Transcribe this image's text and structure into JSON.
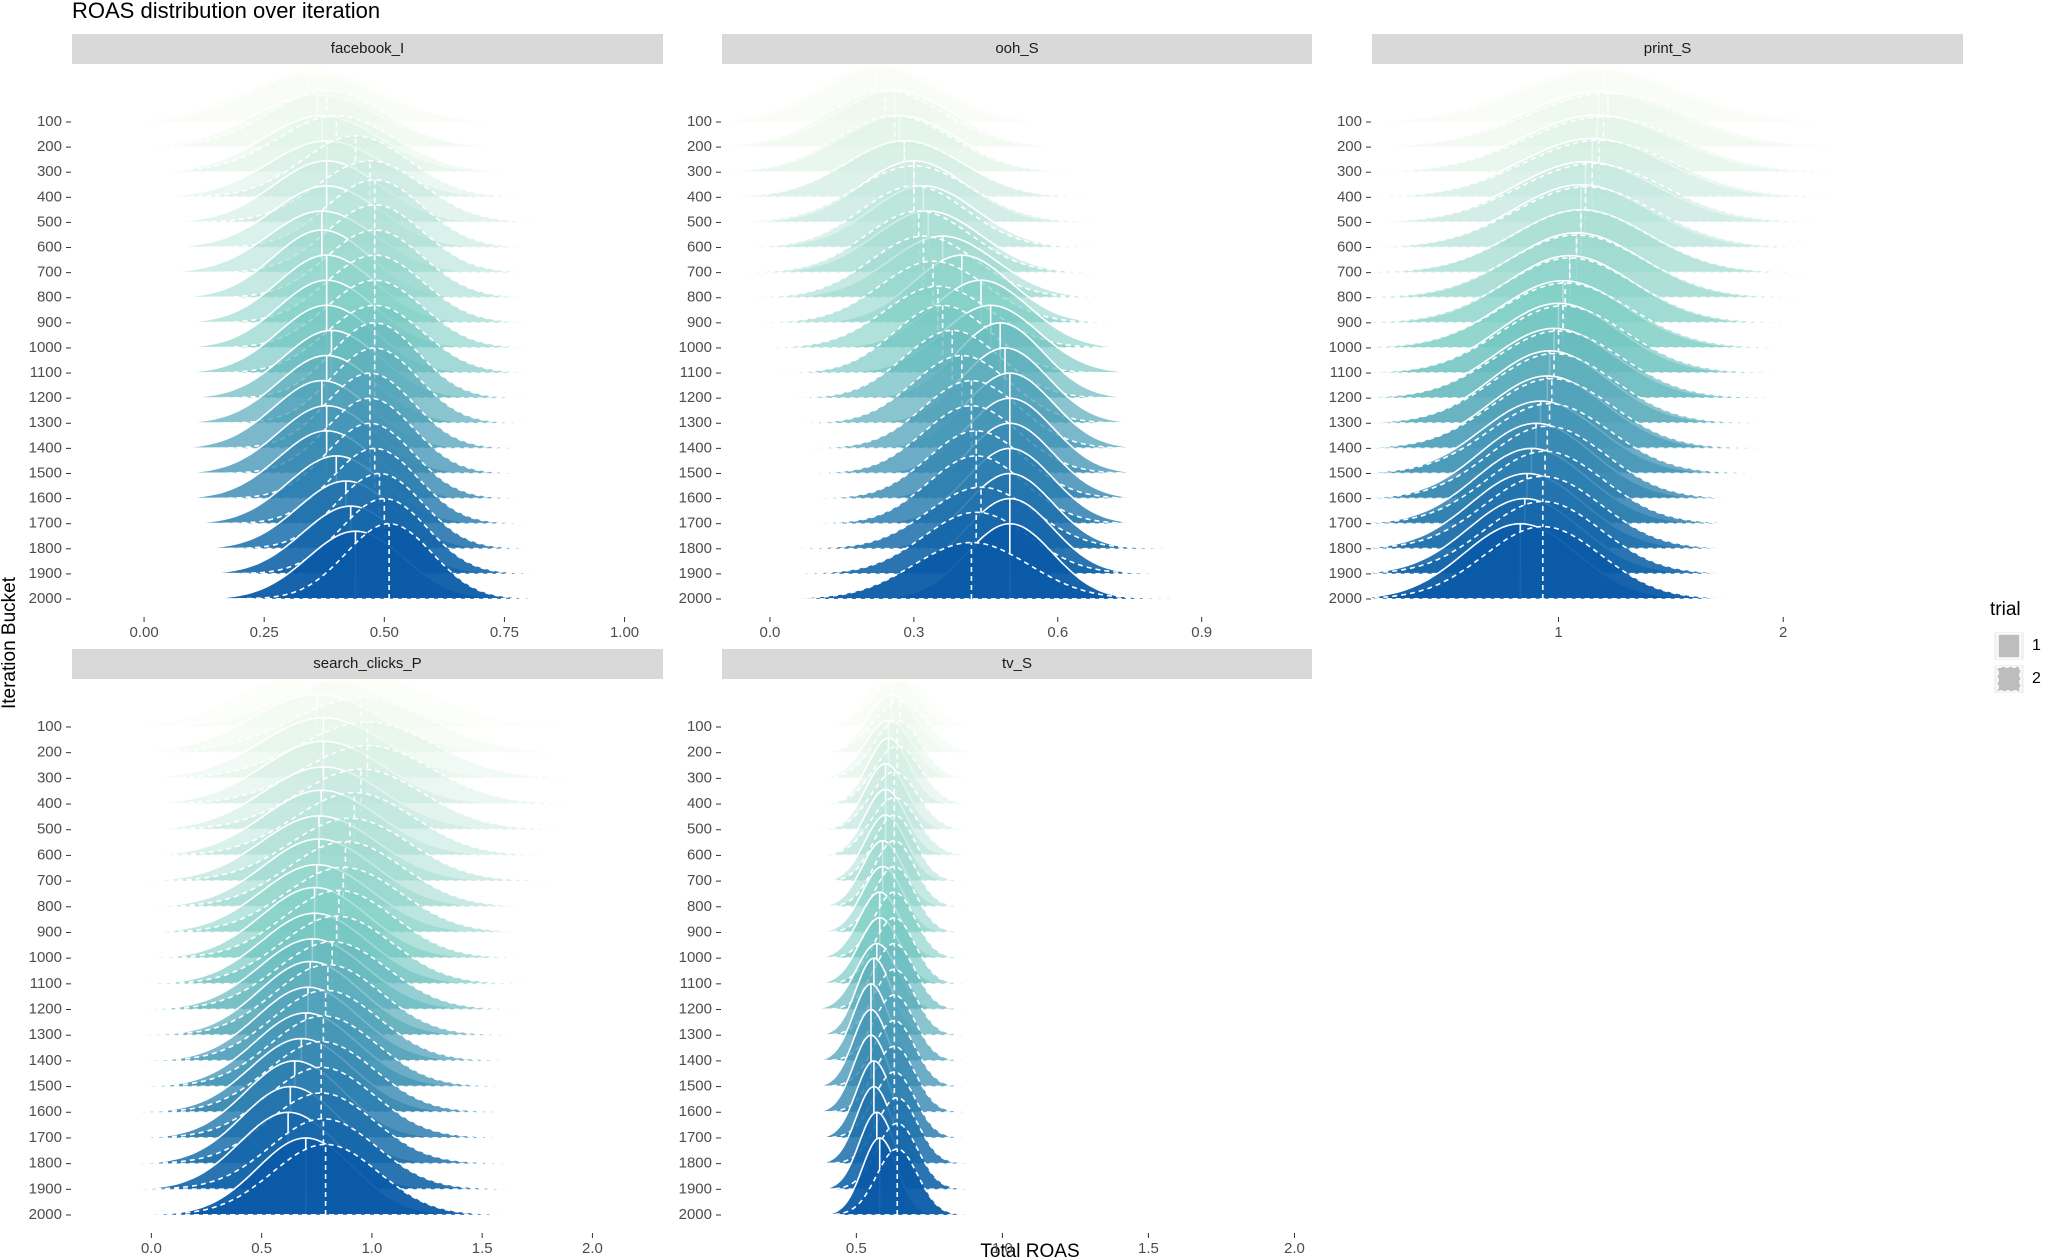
{
  "title": "ROAS distribution over iteration",
  "x_label": "Total ROAS",
  "y_label": "Iteration Bucket",
  "legend_title": "trial",
  "palette": [
    "#f7fcf0",
    "#7bccc4",
    "#0b5ba8"
  ],
  "chart_data": [
    {
      "type": "ridgeline",
      "title": "facebook_I",
      "categories": [
        "100",
        "200",
        "300",
        "400",
        "500",
        "600",
        "700",
        "800",
        "900",
        "1000",
        "1100",
        "1200",
        "1300",
        "1400",
        "1500",
        "1600",
        "1700",
        "1800",
        "1900",
        "2000"
      ],
      "series": [
        {
          "name": "1",
          "line": "solid",
          "values": [
            0.34,
            0.36,
            0.37,
            0.38,
            0.38,
            0.38,
            0.37,
            0.37,
            0.38,
            0.38,
            0.38,
            0.39,
            0.38,
            0.37,
            0.38,
            0.38,
            0.4,
            0.42,
            0.43,
            0.44
          ],
          "spread": [
            0.14,
            0.13,
            0.12,
            0.12,
            0.11,
            0.11,
            0.11,
            0.1,
            0.1,
            0.1,
            0.1,
            0.1,
            0.1,
            0.1,
            0.1,
            0.1,
            0.1,
            0.1,
            0.1,
            0.1
          ]
        },
        {
          "name": "2",
          "line": "dashed",
          "values": [
            0.36,
            0.38,
            0.4,
            0.44,
            0.47,
            0.48,
            0.48,
            0.48,
            0.48,
            0.48,
            0.48,
            0.48,
            0.48,
            0.47,
            0.47,
            0.47,
            0.48,
            0.49,
            0.5,
            0.51
          ],
          "spread": [
            0.13,
            0.12,
            0.12,
            0.11,
            0.11,
            0.1,
            0.1,
            0.1,
            0.1,
            0.1,
            0.1,
            0.09,
            0.09,
            0.09,
            0.09,
            0.09,
            0.09,
            0.09,
            0.09,
            0.09
          ]
        }
      ],
      "xlim": [
        -0.15,
        1.08
      ],
      "xticks": [
        {
          "value": 0,
          "label": "0.00"
        },
        0.25,
        {
          "value": 0.5,
          "label": "0.50"
        },
        0.75,
        {
          "value": 1,
          "label": "1.00"
        }
      ]
    },
    {
      "type": "ridgeline",
      "title": "ooh_S",
      "categories": [
        "100",
        "200",
        "300",
        "400",
        "500",
        "600",
        "700",
        "800",
        "900",
        "1000",
        "1100",
        "1200",
        "1300",
        "1400",
        "1500",
        "1600",
        "1700",
        "1800",
        "1900",
        "2000"
      ],
      "series": [
        {
          "name": "1",
          "line": "solid",
          "values": [
            0.24,
            0.26,
            0.27,
            0.28,
            0.3,
            0.32,
            0.33,
            0.36,
            0.4,
            0.44,
            0.46,
            0.48,
            0.49,
            0.5,
            0.5,
            0.5,
            0.5,
            0.5,
            0.5,
            0.5
          ],
          "spread": [
            0.12,
            0.12,
            0.12,
            0.12,
            0.11,
            0.11,
            0.11,
            0.11,
            0.1,
            0.1,
            0.1,
            0.09,
            0.09,
            0.09,
            0.09,
            0.09,
            0.09,
            0.09,
            0.09,
            0.09
          ]
        },
        {
          "name": "2",
          "line": "dashed",
          "values": [
            0.22,
            0.24,
            0.26,
            0.28,
            0.3,
            0.3,
            0.31,
            0.32,
            0.34,
            0.35,
            0.36,
            0.38,
            0.4,
            0.42,
            0.42,
            0.43,
            0.43,
            0.44,
            0.43,
            0.42
          ],
          "spread": [
            0.12,
            0.12,
            0.12,
            0.12,
            0.12,
            0.11,
            0.11,
            0.11,
            0.11,
            0.11,
            0.1,
            0.1,
            0.1,
            0.1,
            0.1,
            0.1,
            0.1,
            0.11,
            0.11,
            0.12
          ]
        }
      ],
      "xlim": [
        -0.1,
        1.13
      ],
      "xticks": [
        {
          "value": 0,
          "label": "0.0"
        },
        0.3,
        0.6,
        0.9
      ]
    },
    {
      "type": "ridgeline",
      "title": "print_S",
      "categories": [
        "100",
        "200",
        "300",
        "400",
        "500",
        "600",
        "700",
        "800",
        "900",
        "1000",
        "1100",
        "1200",
        "1300",
        "1400",
        "1500",
        "1600",
        "1700",
        "1800",
        "1900",
        "2000"
      ],
      "series": [
        {
          "name": "1",
          "line": "solid",
          "values": [
            1.15,
            1.18,
            1.17,
            1.15,
            1.12,
            1.1,
            1.1,
            1.08,
            1.05,
            1.02,
            1.0,
            0.98,
            0.96,
            0.95,
            0.92,
            0.9,
            0.88,
            0.86,
            0.85,
            0.83
          ],
          "spread": [
            0.35,
            0.34,
            0.33,
            0.32,
            0.31,
            0.3,
            0.3,
            0.29,
            0.28,
            0.28,
            0.27,
            0.27,
            0.26,
            0.26,
            0.26,
            0.25,
            0.25,
            0.25,
            0.25,
            0.25
          ]
        },
        {
          "name": "2",
          "line": "dashed",
          "values": [
            1.2,
            1.22,
            1.2,
            1.18,
            1.15,
            1.12,
            1.1,
            1.08,
            1.05,
            1.03,
            1.02,
            1.0,
            0.98,
            0.97,
            0.96,
            0.95,
            0.94,
            0.93,
            0.93,
            0.93
          ],
          "spread": [
            0.36,
            0.35,
            0.34,
            0.33,
            0.32,
            0.31,
            0.3,
            0.3,
            0.29,
            0.29,
            0.28,
            0.28,
            0.27,
            0.27,
            0.27,
            0.26,
            0.26,
            0.26,
            0.26,
            0.26
          ]
        }
      ],
      "xlim": [
        0.17,
        2.8
      ],
      "xticks": [
        1,
        2
      ]
    },
    {
      "type": "ridgeline",
      "title": "search_clicks_P",
      "categories": [
        "100",
        "200",
        "300",
        "400",
        "500",
        "600",
        "700",
        "800",
        "900",
        "1000",
        "1100",
        "1200",
        "1300",
        "1400",
        "1500",
        "1600",
        "1700",
        "1800",
        "1900",
        "2000"
      ],
      "series": [
        {
          "name": "1",
          "line": "solid",
          "values": [
            0.72,
            0.75,
            0.78,
            0.78,
            0.78,
            0.77,
            0.76,
            0.76,
            0.75,
            0.74,
            0.74,
            0.73,
            0.72,
            0.71,
            0.7,
            0.68,
            0.65,
            0.63,
            0.62,
            0.7
          ],
          "spread": [
            0.3,
            0.29,
            0.28,
            0.27,
            0.27,
            0.26,
            0.26,
            0.25,
            0.25,
            0.24,
            0.24,
            0.24,
            0.23,
            0.23,
            0.23,
            0.23,
            0.22,
            0.22,
            0.22,
            0.22
          ]
        },
        {
          "name": "2",
          "line": "dashed",
          "values": [
            0.95,
            0.95,
            0.98,
            0.98,
            0.95,
            0.92,
            0.9,
            0.88,
            0.87,
            0.85,
            0.84,
            0.82,
            0.8,
            0.79,
            0.78,
            0.77,
            0.77,
            0.77,
            0.78,
            0.79
          ],
          "spread": [
            0.32,
            0.31,
            0.3,
            0.29,
            0.28,
            0.27,
            0.27,
            0.26,
            0.26,
            0.25,
            0.25,
            0.25,
            0.24,
            0.24,
            0.24,
            0.24,
            0.24,
            0.24,
            0.24,
            0.24
          ]
        }
      ],
      "xlim": [
        -0.36,
        2.32
      ],
      "xticks": [
        {
          "value": 0,
          "label": "0.0"
        },
        0.5,
        {
          "value": 1,
          "label": "1.0"
        },
        1.5,
        {
          "value": 2,
          "label": "2.0"
        }
      ]
    },
    {
      "type": "ridgeline",
      "title": "tv_S",
      "categories": [
        "100",
        "200",
        "300",
        "400",
        "500",
        "600",
        "700",
        "800",
        "900",
        "1000",
        "1100",
        "1200",
        "1300",
        "1400",
        "1500",
        "1600",
        "1700",
        "1800",
        "1900",
        "2000"
      ],
      "series": [
        {
          "name": "1",
          "line": "solid",
          "values": [
            0.62,
            0.62,
            0.61,
            0.61,
            0.6,
            0.6,
            0.6,
            0.59,
            0.59,
            0.58,
            0.58,
            0.57,
            0.56,
            0.55,
            0.55,
            0.55,
            0.56,
            0.56,
            0.57,
            0.58
          ],
          "spread": [
            0.08,
            0.08,
            0.08,
            0.07,
            0.07,
            0.07,
            0.07,
            0.07,
            0.07,
            0.07,
            0.07,
            0.07,
            0.06,
            0.06,
            0.06,
            0.06,
            0.06,
            0.06,
            0.06,
            0.06
          ]
        },
        {
          "name": "2",
          "line": "dashed",
          "values": [
            0.65,
            0.65,
            0.64,
            0.64,
            0.63,
            0.63,
            0.63,
            0.63,
            0.63,
            0.63,
            0.63,
            0.63,
            0.63,
            0.63,
            0.63,
            0.63,
            0.63,
            0.64,
            0.64,
            0.64
          ],
          "spread": [
            0.09,
            0.09,
            0.08,
            0.08,
            0.08,
            0.08,
            0.07,
            0.07,
            0.07,
            0.07,
            0.07,
            0.07,
            0.07,
            0.07,
            0.07,
            0.07,
            0.07,
            0.07,
            0.07,
            0.07
          ]
        }
      ],
      "xlim": [
        0.04,
        2.06
      ],
      "xticks": [
        0.5,
        {
          "value": 1,
          "label": "1.0"
        },
        1.5,
        {
          "value": 2,
          "label": "2.0"
        }
      ]
    }
  ]
}
